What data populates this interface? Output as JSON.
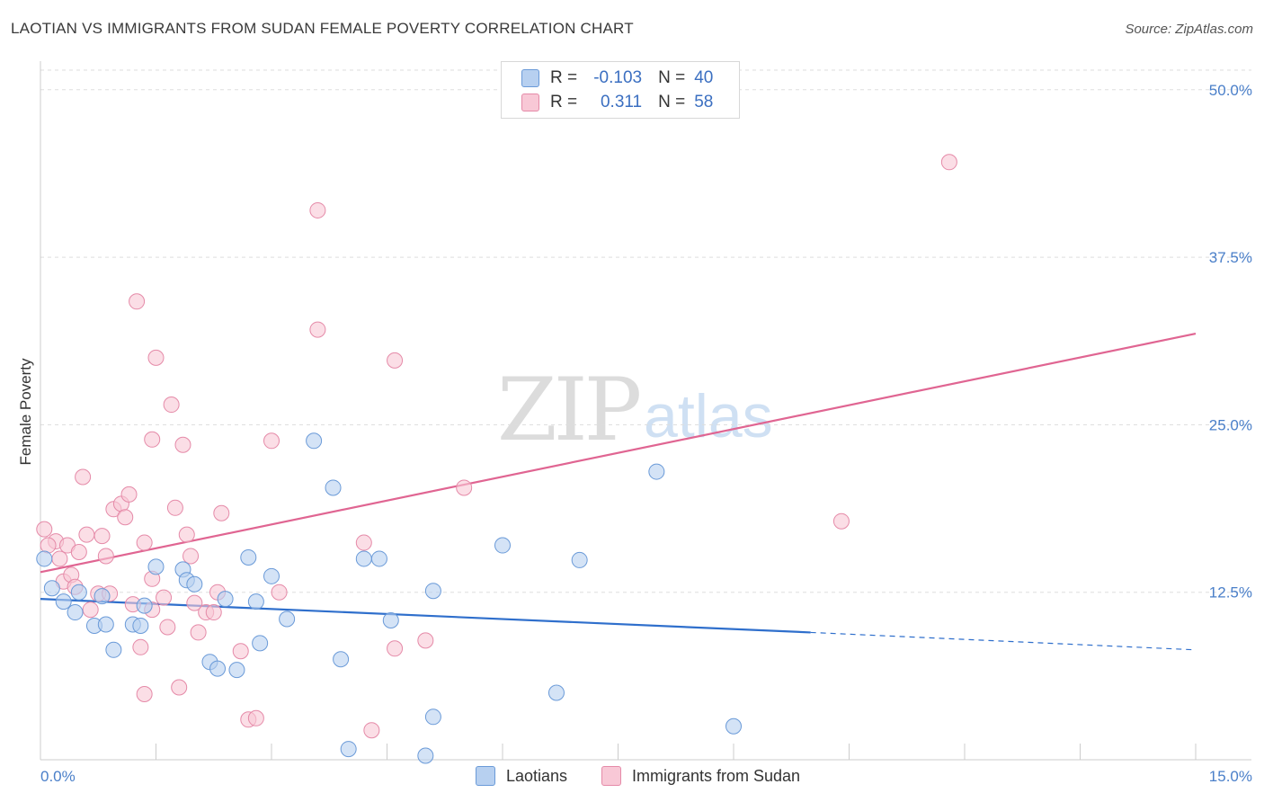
{
  "title": "LAOTIAN VS IMMIGRANTS FROM SUDAN FEMALE POVERTY CORRELATION CHART",
  "source": "Source: ZipAtlas.com",
  "watermark": {
    "zip": "ZIP",
    "atlas": "atlas"
  },
  "legend_top": {
    "rows": [
      {
        "r_label": "R =",
        "r_value": "-0.103",
        "n_label": "N =",
        "n_value": "40"
      },
      {
        "r_label": "R =",
        "r_value": "0.311",
        "n_label": "N =",
        "n_value": "58"
      }
    ]
  },
  "colors": {
    "laotians_fill": "#b7d0f0",
    "laotians_stroke": "#6a9ad8",
    "laotians_line": "#2f6fcc",
    "sudan_fill": "#f8c8d6",
    "sudan_stroke": "#e58aa8",
    "sudan_line": "#e06592",
    "grid": "#dddddd",
    "tick_text": "#4a7fc9"
  },
  "chart_data": {
    "type": "scatter",
    "title": "LAOTIAN VS IMMIGRANTS FROM SUDAN FEMALE POVERTY CORRELATION CHART",
    "xlabel": "",
    "ylabel": "Female Poverty",
    "xlim": [
      0,
      15
    ],
    "ylim": [
      0,
      52
    ],
    "x_tick_labels": [
      "0.0%",
      "15.0%"
    ],
    "y_ticks": [
      12.5,
      25.0,
      37.5,
      50.0
    ],
    "y_tick_labels": [
      "12.5%",
      "25.0%",
      "37.5%",
      "50.0%"
    ],
    "grid": true,
    "legend": "bottom-center",
    "series": [
      {
        "name": "Laotians",
        "R": -0.103,
        "N": 40,
        "trend": {
          "x0": 0,
          "y0": 12.0,
          "x1": 10.0,
          "y1": 9.5,
          "dash_to_x": 15,
          "dash_to_y": 8.2
        },
        "points": [
          [
            0.05,
            15.0
          ],
          [
            0.15,
            12.8
          ],
          [
            0.3,
            11.8
          ],
          [
            0.5,
            12.5
          ],
          [
            0.45,
            11.0
          ],
          [
            0.7,
            10.0
          ],
          [
            0.85,
            10.1
          ],
          [
            0.8,
            12.2
          ],
          [
            0.95,
            8.2
          ],
          [
            1.2,
            10.1
          ],
          [
            1.3,
            10.0
          ],
          [
            1.35,
            11.5
          ],
          [
            1.5,
            14.4
          ],
          [
            1.85,
            14.2
          ],
          [
            1.9,
            13.4
          ],
          [
            2.0,
            13.1
          ],
          [
            2.2,
            7.3
          ],
          [
            2.3,
            6.8
          ],
          [
            2.4,
            12.0
          ],
          [
            2.55,
            6.7
          ],
          [
            2.7,
            15.1
          ],
          [
            2.8,
            11.8
          ],
          [
            2.85,
            8.7
          ],
          [
            3.0,
            13.7
          ],
          [
            3.2,
            10.5
          ],
          [
            3.55,
            23.8
          ],
          [
            3.9,
            7.5
          ],
          [
            3.8,
            20.3
          ],
          [
            4.2,
            15.0
          ],
          [
            4.4,
            15.0
          ],
          [
            4.55,
            10.4
          ],
          [
            5.1,
            12.6
          ],
          [
            5.1,
            3.2
          ],
          [
            6.0,
            16.0
          ],
          [
            6.7,
            5.0
          ],
          [
            7.0,
            14.9
          ],
          [
            8.0,
            21.5
          ],
          [
            9.0,
            2.5
          ],
          [
            4.0,
            0.8
          ],
          [
            5.0,
            0.3
          ]
        ]
      },
      {
        "name": "Immigrants from Sudan",
        "R": 0.311,
        "N": 58,
        "trend": {
          "x0": 0,
          "y0": 14.0,
          "x1": 15,
          "y1": 31.8
        },
        "points": [
          [
            0.05,
            17.2
          ],
          [
            0.2,
            16.3
          ],
          [
            0.25,
            15.0
          ],
          [
            0.3,
            13.3
          ],
          [
            0.35,
            16.0
          ],
          [
            0.4,
            13.8
          ],
          [
            0.45,
            12.9
          ],
          [
            0.5,
            15.5
          ],
          [
            0.55,
            21.1
          ],
          [
            0.65,
            11.2
          ],
          [
            0.6,
            16.8
          ],
          [
            0.75,
            12.4
          ],
          [
            0.8,
            16.7
          ],
          [
            0.85,
            15.2
          ],
          [
            0.95,
            18.7
          ],
          [
            1.05,
            19.1
          ],
          [
            1.1,
            18.1
          ],
          [
            1.15,
            19.8
          ],
          [
            1.2,
            11.6
          ],
          [
            1.3,
            8.4
          ],
          [
            1.35,
            16.2
          ],
          [
            1.45,
            11.2
          ],
          [
            1.45,
            13.5
          ],
          [
            1.35,
            4.9
          ],
          [
            1.25,
            34.2
          ],
          [
            1.5,
            30.0
          ],
          [
            1.45,
            23.9
          ],
          [
            1.6,
            12.1
          ],
          [
            1.65,
            9.9
          ],
          [
            1.7,
            26.5
          ],
          [
            1.75,
            18.8
          ],
          [
            1.8,
            5.4
          ],
          [
            1.85,
            23.5
          ],
          [
            1.9,
            16.8
          ],
          [
            1.95,
            15.2
          ],
          [
            2.0,
            11.7
          ],
          [
            2.05,
            9.5
          ],
          [
            2.15,
            11.0
          ],
          [
            2.25,
            11.0
          ],
          [
            2.3,
            12.5
          ],
          [
            2.35,
            18.4
          ],
          [
            2.6,
            8.1
          ],
          [
            2.7,
            3.0
          ],
          [
            2.8,
            3.1
          ],
          [
            3.0,
            23.8
          ],
          [
            3.1,
            12.5
          ],
          [
            3.6,
            32.1
          ],
          [
            3.6,
            41.0
          ],
          [
            4.2,
            16.2
          ],
          [
            4.3,
            2.2
          ],
          [
            4.6,
            29.8
          ],
          [
            4.6,
            8.3
          ],
          [
            5.0,
            8.9
          ],
          [
            5.5,
            20.3
          ],
          [
            10.4,
            17.8
          ],
          [
            11.8,
            44.6
          ],
          [
            0.1,
            16.0
          ],
          [
            0.9,
            12.4
          ]
        ]
      }
    ]
  },
  "bottom_legend": {
    "laotians": "Laotians",
    "sudan": "Immigrants from Sudan"
  }
}
